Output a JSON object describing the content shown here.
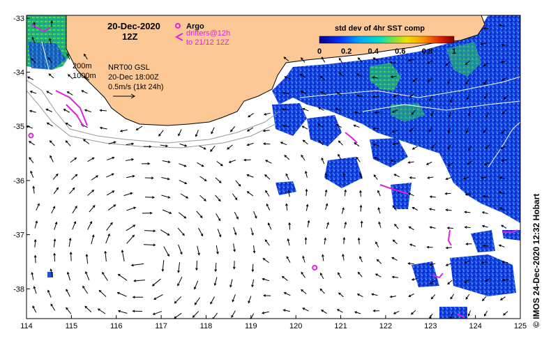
{
  "map": {
    "date": "20-Dec-2020",
    "time": "12Z",
    "colorbar": {
      "title": "std dev of 4hr SST comp",
      "ticks": [
        "0",
        "0.2",
        "0.4",
        "0.6",
        "0.8",
        "1"
      ],
      "colors": [
        "#0000a0",
        "#0040ff",
        "#00c0ff",
        "#00e0a0",
        "#a0e000",
        "#ffe000",
        "#ff8000",
        "#e02000",
        "#800000"
      ]
    },
    "legend": {
      "argo_label": "Argo",
      "drifters_line1": "drifters@12h",
      "drifters_line2": "to 21/12 12Z"
    },
    "isobaths": {
      "line1": "200m",
      "line2": "1000m"
    },
    "current_info": {
      "line1": "NRT00 GSL",
      "line2": "20-Dec 18:00Z",
      "line3": "0.5m/s (1kt 24h)"
    },
    "credit": "© IMOS 24-Dec-2020 12:32 Hobart",
    "x_ticks": [
      "114",
      "115",
      "116",
      "117",
      "118",
      "119",
      "120",
      "121",
      "122",
      "123",
      "124",
      "125"
    ],
    "y_ticks": [
      "-33",
      "-34",
      "-35",
      "-36",
      "-37",
      "-38"
    ],
    "colors": {
      "land": "#fcc896",
      "ocean": "#ffffff",
      "argo": "#e020e0",
      "drifter": "#e020e0"
    },
    "argo_floats": [
      {
        "lon": 114.1,
        "lat": -35.17
      },
      {
        "lon": 120.42,
        "lat": -37.61
      }
    ]
  }
}
